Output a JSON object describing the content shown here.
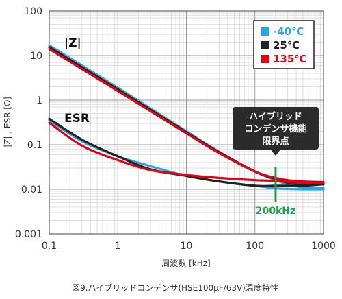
{
  "chart_data": {
    "type": "line",
    "xlabel": "周波数 [kHz]",
    "ylabel": "|Z| , ESR [Ω]",
    "caption": "図9.ハイブリッドコンデンサ(HSE100μF/63V)温度特性",
    "x_scale": "log",
    "y_scale": "log",
    "xlim": [
      0.1,
      1000
    ],
    "ylim": [
      0.001,
      100
    ],
    "x_ticks": [
      "0.1",
      "1",
      "10",
      "100",
      "1000"
    ],
    "y_ticks": [
      "100",
      "10",
      "1",
      "0.1",
      "0.01",
      "0.001"
    ],
    "grid": true,
    "legend_position": "top-right",
    "legend": [
      {
        "label": "-40℃",
        "color": "#29a8e0"
      },
      {
        "label": "25℃",
        "color": "#222222"
      },
      {
        "label": "135℃",
        "color": "#e60012"
      }
    ],
    "curve_labels": {
      "impedance": "|Z|",
      "esr": "ESR"
    },
    "series": [
      {
        "name": "-40℃",
        "group": "|Z|",
        "color": "#29a8e0",
        "x": [
          0.1,
          1,
          10,
          30,
          100,
          200,
          300,
          500,
          1000
        ],
        "y": [
          17,
          1.9,
          0.2,
          0.07,
          0.025,
          0.016,
          0.013,
          0.011,
          0.0105
        ]
      },
      {
        "name": "25℃",
        "group": "|Z|",
        "color": "#222222",
        "x": [
          0.1,
          1,
          10,
          30,
          100,
          200,
          300,
          500,
          1000
        ],
        "y": [
          15.5,
          1.75,
          0.19,
          0.068,
          0.025,
          0.017,
          0.014,
          0.013,
          0.013
        ]
      },
      {
        "name": "135℃",
        "group": "|Z|",
        "color": "#e60012",
        "x": [
          0.1,
          1,
          10,
          30,
          100,
          200,
          300,
          500,
          1000
        ],
        "y": [
          14,
          1.6,
          0.18,
          0.065,
          0.025,
          0.018,
          0.016,
          0.015,
          0.0145
        ]
      },
      {
        "name": "-40℃",
        "group": "ESR",
        "color": "#29a8e0",
        "x": [
          0.1,
          0.3,
          1,
          3,
          10,
          30,
          100,
          200,
          300,
          500,
          1000
        ],
        "y": [
          0.35,
          0.12,
          0.055,
          0.033,
          0.02,
          0.015,
          0.012,
          0.0105,
          0.0102,
          0.01,
          0.01
        ]
      },
      {
        "name": "25℃",
        "group": "ESR",
        "color": "#222222",
        "x": [
          0.1,
          0.3,
          1,
          3,
          10,
          30,
          100,
          200,
          300,
          500,
          1000
        ],
        "y": [
          0.38,
          0.13,
          0.055,
          0.028,
          0.02,
          0.015,
          0.012,
          0.012,
          0.012,
          0.012,
          0.013
        ]
      },
      {
        "name": "135℃",
        "group": "ESR",
        "color": "#e60012",
        "x": [
          0.1,
          0.3,
          1,
          3,
          10,
          30,
          100,
          200,
          300,
          500,
          1000
        ],
        "y": [
          0.31,
          0.095,
          0.045,
          0.027,
          0.021,
          0.018,
          0.016,
          0.0155,
          0.0145,
          0.014,
          0.014
        ]
      }
    ],
    "annotations": [
      {
        "text": "ハイブリッド\nコンデンサ機能\n限界点",
        "kind": "callout",
        "x": 200
      },
      {
        "text": "200kHz",
        "kind": "marker",
        "x": 200,
        "color": "#1ca04a"
      }
    ]
  }
}
